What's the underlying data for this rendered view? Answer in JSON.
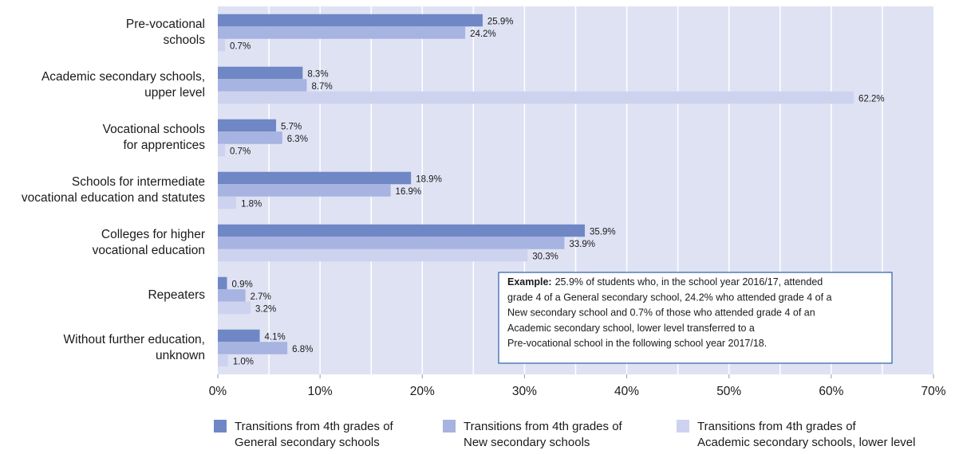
{
  "chart_data": {
    "type": "hbar",
    "categories": [
      [
        "Pre-vocational",
        "schools"
      ],
      [
        "Academic secondary schools,",
        "upper level"
      ],
      [
        "Vocational schools",
        "for apprentices"
      ],
      [
        "Schools for intermediate",
        "vocational education and statutes"
      ],
      [
        "Colleges for higher",
        "vocational education"
      ],
      [
        "Repeaters"
      ],
      [
        "Without further education,",
        "unknown"
      ]
    ],
    "series": [
      {
        "name": [
          "Transitions from 4th grades of",
          "General secondary schools"
        ],
        "color": "#6f87c4",
        "values": [
          25.9,
          8.3,
          5.7,
          18.9,
          35.9,
          0.9,
          4.1
        ],
        "value_labels": [
          "25.9%",
          "8.3%",
          "5.7%",
          "18.9%",
          "35.9%",
          "0.9%",
          "4.1%"
        ]
      },
      {
        "name": [
          "Transitions from 4th grades of",
          "New secondary schools"
        ],
        "color": "#a7b3e0",
        "values": [
          24.2,
          8.7,
          6.3,
          16.9,
          33.9,
          2.7,
          6.8
        ],
        "value_labels": [
          "24.2%",
          "8.7%",
          "6.3%",
          "16.9%",
          "33.9%",
          "2.7%",
          "6.8%"
        ]
      },
      {
        "name": [
          "Transitions from 4th grades of",
          "Academic secondary schools, lower level"
        ],
        "color": "#cdd3ef",
        "values": [
          0.7,
          62.2,
          0.7,
          1.8,
          30.3,
          3.2,
          1.0
        ],
        "value_labels": [
          "0.7%",
          "62.2%",
          "0.7%",
          "1.8%",
          "30.3%",
          "3.2%",
          "1.0%"
        ]
      }
    ],
    "xlim": [
      0,
      70
    ],
    "xticks": [
      {
        "value": 0,
        "label": "0%"
      },
      {
        "value": 10,
        "label": "10%"
      },
      {
        "value": 20,
        "label": "20%"
      },
      {
        "value": 30,
        "label": "30%"
      },
      {
        "value": 40,
        "label": "40%"
      },
      {
        "value": 50,
        "label": "50%"
      },
      {
        "value": 60,
        "label": "60%"
      },
      {
        "value": 70,
        "label": "70%"
      }
    ],
    "xgrid": [
      5,
      10,
      15,
      20,
      25,
      30,
      35,
      40,
      45,
      50,
      55,
      60,
      65
    ],
    "annotation": {
      "label": "Example:",
      "lines": [
        "25.9% of students who, in the school year 2016/17, attended",
        "grade 4 of a General secondary school, 24.2% who attended grade 4 of a",
        "New secondary school and 0.7% of those who attended grade 4 of an",
        "Academic secondary school, lower level transferred to a",
        "Pre-vocational school in the following school year 2017/18."
      ]
    }
  }
}
